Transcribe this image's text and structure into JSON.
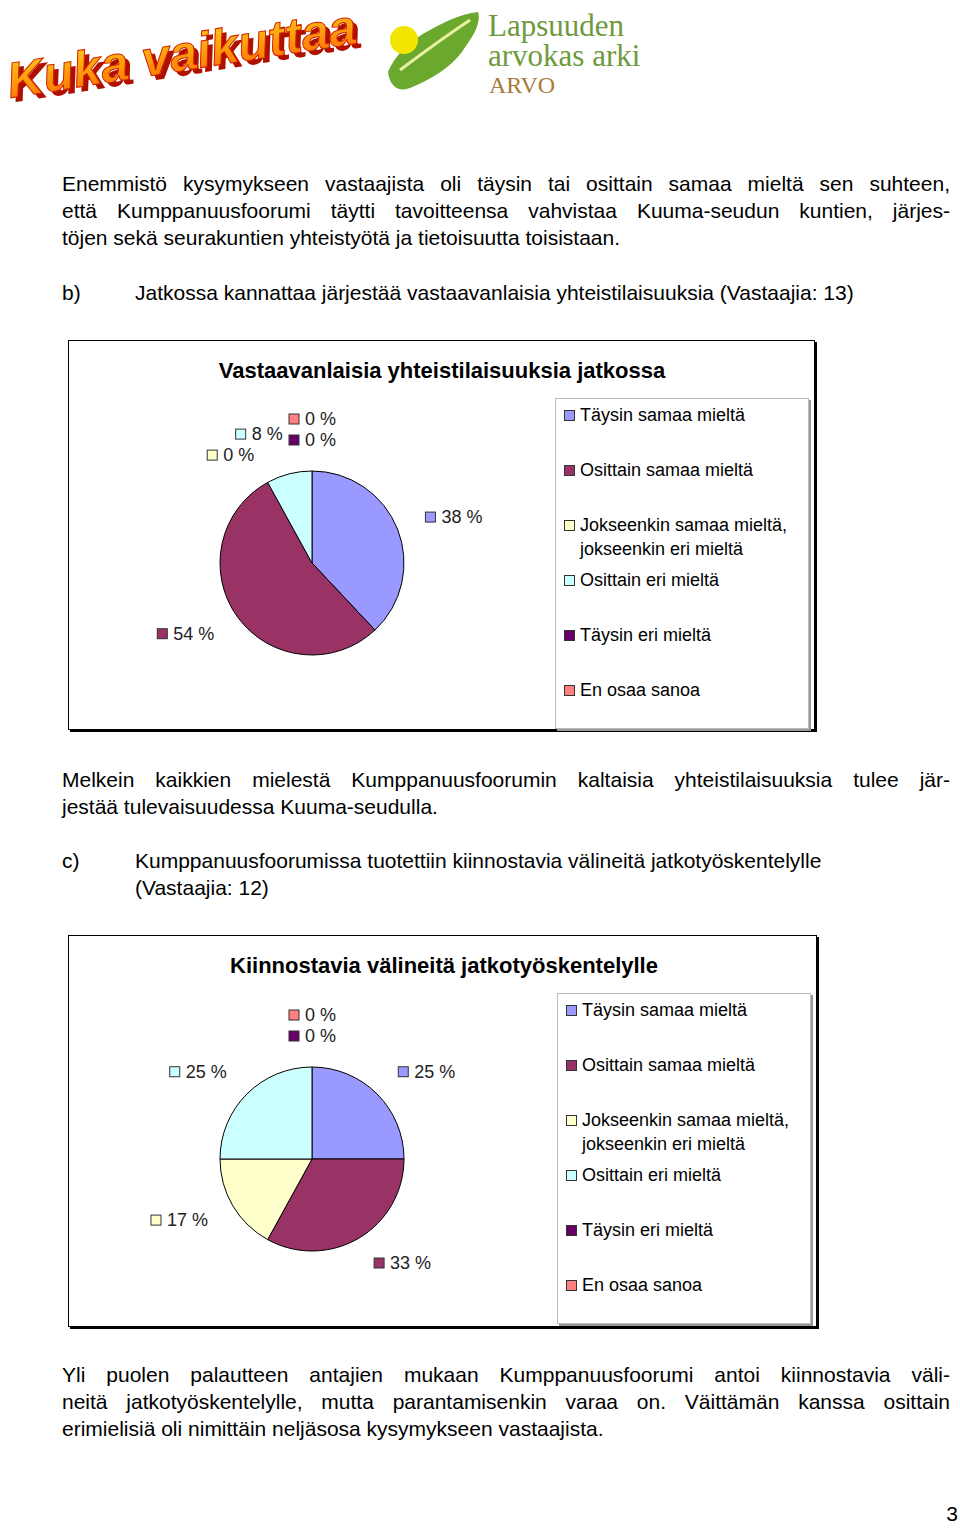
{
  "document": {
    "logo_left": "Kuka vaikuttaa",
    "logo_right": {
      "lines": [
        "Lapsuuden",
        "arvokas arki"
      ],
      "acronym": "ARVO"
    },
    "intro": [
      "Enemmistö kysymykseen vastaajista oli täysin tai osittain samaa mieltä sen suhteen,",
      "että Kumppanuusfoorumi täytti tavoitteensa vahvistaa Kuuma-seudun kuntien, järjes-",
      "töjen sekä seurakuntien yhteistyötä ja tietoisuutta toisistaan."
    ],
    "sections": [
      {
        "label": "b)",
        "question": [
          "Jatkossa kannattaa järjestää vastaavanlaisia yhteistilaisuuksia (Vastaajia: 13)"
        ],
        "conclusion": [
          "Melkein kaikkien mielestä Kumppanuusfoorumin kaltaisia yhteistilaisuuksia tulee jär-",
          "jestää tulevaisuudessa Kuuma-seudulla."
        ]
      },
      {
        "label": "c)",
        "question": [
          "Kumppanuusfoorumissa tuotettiin kiinnostavia välineitä jatkotyöskentelylle",
          "(Vastaajia: 12)"
        ],
        "conclusion": [
          "Yli puolen palautteen antajien mukaan Kumppanuusfoorumi antoi kiinnostavia väli-",
          "neitä jatkotyöskentelylle, mutta parantamisenkin varaa on. Väittämän kanssa osittain",
          "erimielisiä oli nimittäin neljäsosa kysymykseen vastaajista."
        ]
      }
    ],
    "page_number": "3"
  },
  "chart_data": [
    {
      "type": "pie",
      "title": "Vastaavanlaisia yhteistilaisuuksia jatkossa",
      "categories": [
        "Täysin samaa mieltä",
        "Osittain samaa mieltä",
        "Jokseenkin samaa mieltä, jokseenkin eri mieltä",
        "Osittain eri mieltä",
        "Täysin eri mieltä",
        "En osaa sanoa"
      ],
      "values": [
        38,
        54,
        0,
        8,
        0,
        0
      ],
      "value_labels": [
        "38 %",
        "54 %",
        "0 %",
        "8 %",
        "0 %",
        "0 %"
      ],
      "colors": [
        "#9999ff",
        "#993366",
        "#ffffcc",
        "#ccffff",
        "#660066",
        "#ff8080"
      ],
      "legend": "right",
      "data_labels": true
    },
    {
      "type": "pie",
      "title": "Kiinnostavia välineitä jatkotyöskentelylle",
      "categories": [
        "Täysin samaa mieltä",
        "Osittain samaa mieltä",
        "Jokseenkin samaa mieltä, jokseenkin eri mieltä",
        "Osittain eri mieltä",
        "Täysin eri mieltä",
        "En osaa sanoa"
      ],
      "values": [
        25,
        33,
        17,
        25,
        0,
        0
      ],
      "value_labels": [
        "25 %",
        "33 %",
        "17 %",
        "25 %",
        "0 %",
        "0 %"
      ],
      "colors": [
        "#9999ff",
        "#993366",
        "#ffffcc",
        "#ccffff",
        "#660066",
        "#ff8080"
      ],
      "legend": "right",
      "data_labels": true
    }
  ]
}
